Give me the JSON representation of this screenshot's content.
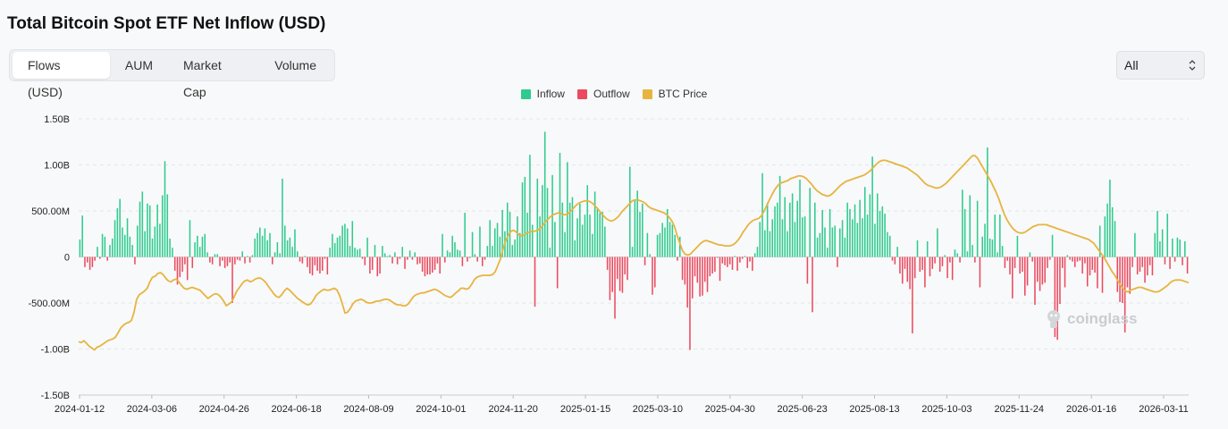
{
  "title": "Total Bitcoin Spot ETF Net Inflow (USD)",
  "tabs": [
    {
      "label": "Flows (USD)",
      "active": true
    },
    {
      "label": "AUM",
      "active": false
    },
    {
      "label": "Market Cap",
      "active": false
    },
    {
      "label": "Volume",
      "active": false
    }
  ],
  "range_select": {
    "value": "All"
  },
  "watermark": "coinglass",
  "colors": {
    "inflow": "#2fcb8e",
    "outflow": "#ec4a5f",
    "price": "#e7b440"
  },
  "chart_data": {
    "type": "bar",
    "ylim": [
      -1.5,
      1.5
    ],
    "y_unit": "B USD",
    "grid": true,
    "legend_position": "top-center",
    "legend": [
      "Inflow",
      "Outflow",
      "BTC Price"
    ],
    "y_ticks": [
      "1.50B",
      "1.00B",
      "500.00M",
      "0",
      "-500.00M",
      "-1.00B",
      "-1.50B"
    ],
    "x_ticks": [
      "2024-01-12",
      "2024-03-06",
      "2024-04-26",
      "2024-06-18",
      "2024-08-09",
      "2024-10-01",
      "2024-11-20",
      "2025-01-15",
      "2025-03-10",
      "2025-04-30",
      "2025-06-23",
      "2025-08-13",
      "2025-10-03",
      "2025-11-24",
      "2026-01-16",
      "2026-03-11"
    ],
    "series": [
      {
        "name": "Net Flow",
        "values": [
          0.19,
          0.45,
          -0.11,
          -0.06,
          -0.14,
          -0.11,
          -0.04,
          0.11,
          -0.02,
          0.25,
          0.22,
          -0.04,
          0.13,
          0.2,
          0.4,
          0.53,
          0.63,
          0.32,
          0.24,
          0.42,
          0.22,
          0.13,
          -0.08,
          0.34,
          0.6,
          0.71,
          0.28,
          0.58,
          0.56,
          0.2,
          0.33,
          0.57,
          0.36,
          0.67,
          1.04,
          0.68,
          0.2,
          0.1,
          -0.15,
          -0.3,
          -0.22,
          -0.16,
          -0.08,
          -0.25,
          0.4,
          -0.12,
          0.16,
          0.23,
          0.11,
          0.22,
          0.25,
          0.05,
          -0.06,
          -0.08,
          0.03,
          0.03,
          -0.1,
          -0.04,
          -0.12,
          -0.1,
          -0.06,
          -0.5,
          -0.08,
          -0.03,
          -0.04,
          0.06,
          -0.07,
          0.01,
          -0.06,
          0.02,
          0.2,
          0.26,
          0.32,
          0.23,
          0.31,
          0.18,
          0.26,
          -0.08,
          0.05,
          0.16,
          0.04,
          0.85,
          0.34,
          0.18,
          0.21,
          0.11,
          0.3,
          0.06,
          -0.05,
          -0.07,
          0.01,
          -0.11,
          -0.18,
          -0.2,
          -0.09,
          -0.15,
          -0.18,
          -0.15,
          -0.02,
          -0.19,
          0.1,
          0.25,
          0.15,
          0.21,
          0.23,
          0.34,
          0.36,
          0.31,
          0.12,
          0.39,
          0.1,
          0.08,
          0.09,
          -0.02,
          -0.09,
          0.21,
          -0.18,
          -0.14,
          0.13,
          -0.21,
          -0.18,
          0.12,
          0.04,
          0.01,
          0.02,
          -0.07,
          0.05,
          -0.08,
          -0.02,
          0.11,
          -0.13,
          -0.03,
          0.07,
          -0.03,
          0.05,
          -0.08,
          -0.07,
          -0.16,
          -0.21,
          -0.19,
          -0.19,
          -0.17,
          -0.14,
          -0.07,
          -0.18,
          0.25,
          -0.06,
          0.07,
          0.05,
          0.23,
          0.16,
          0.08,
          0.07,
          -0.1,
          0.48,
          -0.05,
          -0.01,
          0.27,
          0.03,
          -0.05,
          0.33,
          -0.1,
          -0.03,
          0.12,
          0.4,
          0.12,
          0.31,
          0.37,
          0.22,
          0.51,
          0.28,
          0.59,
          0.49,
          0.13,
          0.19,
          0.44,
          0.26,
          0.81,
          0.87,
          0.48,
          1.11,
          0.35,
          -0.54,
          0.85,
          0.44,
          0.78,
          1.36,
          0.75,
          0.1,
          0.89,
          0.38,
          -0.34,
          1.13,
          0.59,
          0.27,
          1.03,
          0.59,
          0.65,
          0.18,
          0.42,
          0.58,
          0.35,
          0.46,
          0.78,
          0.46,
          0.25,
          0.71,
          0.52,
          0.48,
          0.49,
          0.33,
          -0.14,
          -0.47,
          -0.38,
          -0.67,
          -0.24,
          -0.37,
          -0.39,
          -0.19,
          -0.25,
          0.98,
          0.11,
          0.62,
          0.72,
          0.49,
          0.58,
          -0.09,
          0.26,
          0.03,
          -0.41,
          -0.33,
          0.24,
          0.26,
          0.37,
          0.32,
          0.52,
          0.38,
          0.35,
          0.24,
          -0.04,
          0.22,
          -0.25,
          -0.3,
          -0.55,
          -1.01,
          -0.45,
          -0.21,
          -0.28,
          -0.43,
          -0.42,
          -0.27,
          -0.38,
          -0.21,
          -0.18,
          -0.16,
          -0.01,
          -0.26,
          -0.07,
          -0.09,
          -0.11,
          -0.08,
          -0.14,
          0.01,
          -0.15,
          -0.06,
          -0.02,
          0.01,
          -0.12,
          -0.05,
          -0.15,
          0.04,
          0.11,
          0.38,
          0.91,
          0.29,
          0.59,
          0.28,
          0.41,
          0.55,
          0.59,
          0.88,
          0.41,
          0.65,
          0.28,
          0.59,
          0.69,
          0.38,
          0.61,
          0.84,
          0.43,
          0.44,
          -0.29,
          0.75,
          -0.6,
          0.59,
          0.21,
          0.26,
          0.51,
          0.32,
          0.1,
          0.52,
          0.32,
          0.34,
          -0.11,
          0.31,
          0.4,
          0.21,
          0.59,
          0.52,
          0.41,
          0.57,
          0.37,
          0.62,
          0.42,
          0.76,
          0.46,
          0.68,
          1.09,
          0.36,
          0.69,
          0.5,
          0.55,
          0.47,
          0.27,
          0.23,
          -0.04,
          -0.08,
          0.11,
          -0.18,
          -0.29,
          -0.13,
          -0.27,
          -0.35,
          -0.83,
          -0.23,
          0.18,
          -0.16,
          -0.14,
          -0.33,
          0.17,
          -0.21,
          -0.13,
          -0.07,
          0.31,
          -0.16,
          -0.1,
          0.02,
          -0.23,
          -0.06,
          -0.25,
          0.08,
          0.04,
          -0.06,
          0.73,
          0.52,
          0.06,
          0.67,
          0.13,
          -0.06,
          0.61,
          -0.33,
          0.22,
          0.36,
          1.19,
          0.2,
          0.19,
          0.46,
          0.05,
          0.46,
          0.12,
          -0.12,
          -0.04,
          -0.19,
          -0.45,
          -0.12,
          0.23,
          -0.18,
          -0.16,
          -0.42,
          -0.31,
          0.05,
          -0.05,
          -0.52,
          -0.27,
          -0.37,
          -0.3,
          -0.28,
          -0.12,
          -0.03,
          0.24,
          -0.87,
          -0.9,
          -0.51,
          -0.12,
          -0.33,
          0.02,
          -0.03,
          -0.05,
          -0.11,
          -0.05,
          -0.04,
          -0.18,
          -0.07,
          -0.32,
          -0.2,
          -0.14,
          -0.17,
          -0.34,
          0.34,
          -0.39,
          0.44,
          0.58,
          0.84,
          0.54,
          0.39,
          -0.38,
          -0.49,
          -0.5,
          -0.82,
          -0.33,
          -0.4,
          -0.11,
          0.26,
          -0.19,
          -0.16,
          -0.11,
          -0.28,
          -0.2,
          -0.09,
          -0.2,
          0.26,
          0.5,
          0.17,
          0.3,
          -0.08,
          0.47,
          -0.13,
          0.2,
          -0.05,
          0.21,
          0.19,
          -0.09,
          0.17,
          -0.18
        ]
      },
      {
        "name": "BTC Price",
        "values": [
          -0.92,
          -0.93,
          -0.91,
          -0.94,
          -0.97,
          -0.99,
          -1.01,
          -0.98,
          -0.97,
          -0.95,
          -0.93,
          -0.91,
          -0.9,
          -0.89,
          -0.87,
          -0.82,
          -0.77,
          -0.74,
          -0.72,
          -0.71,
          -0.69,
          -0.6,
          -0.46,
          -0.41,
          -0.39,
          -0.37,
          -0.34,
          -0.27,
          -0.22,
          -0.21,
          -0.18,
          -0.17,
          -0.19,
          -0.23,
          -0.26,
          -0.27,
          -0.25,
          -0.24,
          -0.27,
          -0.31,
          -0.34,
          -0.35,
          -0.34,
          -0.33,
          -0.34,
          -0.35,
          -0.36,
          -0.39,
          -0.42,
          -0.45,
          -0.43,
          -0.41,
          -0.4,
          -0.41,
          -0.44,
          -0.48,
          -0.53,
          -0.51,
          -0.49,
          -0.43,
          -0.37,
          -0.33,
          -0.29,
          -0.26,
          -0.25,
          -0.27,
          -0.26,
          -0.24,
          -0.23,
          -0.23,
          -0.25,
          -0.28,
          -0.32,
          -0.36,
          -0.4,
          -0.43,
          -0.44,
          -0.41,
          -0.37,
          -0.34,
          -0.36,
          -0.39,
          -0.42,
          -0.45,
          -0.47,
          -0.49,
          -0.51,
          -0.52,
          -0.51,
          -0.47,
          -0.42,
          -0.39,
          -0.37,
          -0.35,
          -0.36,
          -0.36,
          -0.35,
          -0.34,
          -0.36,
          -0.42,
          -0.51,
          -0.61,
          -0.6,
          -0.56,
          -0.51,
          -0.48,
          -0.47,
          -0.46,
          -0.47,
          -0.49,
          -0.5,
          -0.5,
          -0.49,
          -0.48,
          -0.48,
          -0.47,
          -0.46,
          -0.46,
          -0.47,
          -0.49,
          -0.51,
          -0.52,
          -0.52,
          -0.53,
          -0.53,
          -0.51,
          -0.47,
          -0.43,
          -0.41,
          -0.4,
          -0.39,
          -0.39,
          -0.38,
          -0.37,
          -0.36,
          -0.35,
          -0.36,
          -0.38,
          -0.4,
          -0.42,
          -0.43,
          -0.44,
          -0.42,
          -0.39,
          -0.37,
          -0.34,
          -0.34,
          -0.35,
          -0.34,
          -0.3,
          -0.25,
          -0.22,
          -0.21,
          -0.2,
          -0.2,
          -0.2,
          -0.2,
          -0.19,
          -0.16,
          -0.09,
          -0.02,
          0.09,
          0.18,
          0.24,
          0.28,
          0.29,
          0.27,
          0.24,
          0.23,
          0.24,
          0.26,
          0.27,
          0.28,
          0.28,
          0.29,
          0.31,
          0.34,
          0.38,
          0.41,
          0.44,
          0.46,
          0.47,
          0.48,
          0.47,
          0.46,
          0.46,
          0.48,
          0.51,
          0.54,
          0.57,
          0.59,
          0.6,
          0.61,
          0.61,
          0.6,
          0.58,
          0.55,
          0.52,
          0.48,
          0.45,
          0.42,
          0.4,
          0.39,
          0.4,
          0.42,
          0.45,
          0.49,
          0.52,
          0.55,
          0.58,
          0.61,
          0.62,
          0.62,
          0.61,
          0.6,
          0.58,
          0.55,
          0.53,
          0.52,
          0.51,
          0.5,
          0.49,
          0.48,
          0.46,
          0.43,
          0.39,
          0.33,
          0.23,
          0.15,
          0.07,
          0.03,
          0.02,
          0.03,
          0.06,
          0.09,
          0.12,
          0.15,
          0.17,
          0.18,
          0.17,
          0.16,
          0.15,
          0.14,
          0.13,
          0.13,
          0.12,
          0.12,
          0.12,
          0.13,
          0.15,
          0.18,
          0.22,
          0.27,
          0.31,
          0.35,
          0.38,
          0.4,
          0.41,
          0.42,
          0.45,
          0.5,
          0.56,
          0.62,
          0.68,
          0.73,
          0.77,
          0.8,
          0.81,
          0.82,
          0.83,
          0.85,
          0.86,
          0.87,
          0.88,
          0.88,
          0.87,
          0.85,
          0.82,
          0.79,
          0.75,
          0.72,
          0.7,
          0.68,
          0.67,
          0.66,
          0.67,
          0.69,
          0.72,
          0.75,
          0.78,
          0.8,
          0.82,
          0.83,
          0.84,
          0.85,
          0.86,
          0.87,
          0.88,
          0.89,
          0.91,
          0.93,
          0.96,
          0.99,
          1.02,
          1.04,
          1.05,
          1.05,
          1.04,
          1.03,
          1.02,
          1.01,
          1.0,
          0.99,
          0.98,
          0.97,
          0.95,
          0.93,
          0.91,
          0.89,
          0.86,
          0.83,
          0.8,
          0.78,
          0.77,
          0.76,
          0.75,
          0.75,
          0.76,
          0.78,
          0.8,
          0.83,
          0.86,
          0.89,
          0.92,
          0.95,
          0.98,
          1.01,
          1.04,
          1.07,
          1.1,
          1.1,
          1.07,
          1.02,
          0.97,
          0.92,
          0.87,
          0.82,
          0.76,
          0.7,
          0.63,
          0.55,
          0.47,
          0.41,
          0.36,
          0.32,
          0.29,
          0.27,
          0.26,
          0.26,
          0.27,
          0.29,
          0.31,
          0.33,
          0.34,
          0.35,
          0.35,
          0.35,
          0.35,
          0.34,
          0.33,
          0.32,
          0.31,
          0.3,
          0.29,
          0.28,
          0.27,
          0.26,
          0.25,
          0.24,
          0.23,
          0.22,
          0.21,
          0.2,
          0.19,
          0.17,
          0.15,
          0.11,
          0.07,
          0.03,
          -0.01,
          -0.06,
          -0.11,
          -0.16,
          -0.2,
          -0.25,
          -0.3,
          -0.34,
          -0.37,
          -0.38,
          -0.36,
          -0.35,
          -0.34,
          -0.33,
          -0.33,
          -0.34,
          -0.35,
          -0.36,
          -0.37,
          -0.38,
          -0.38,
          -0.37,
          -0.35,
          -0.33,
          -0.31,
          -0.28,
          -0.26,
          -0.25,
          -0.25,
          -0.25,
          -0.26,
          -0.27,
          -0.28
        ]
      }
    ]
  }
}
